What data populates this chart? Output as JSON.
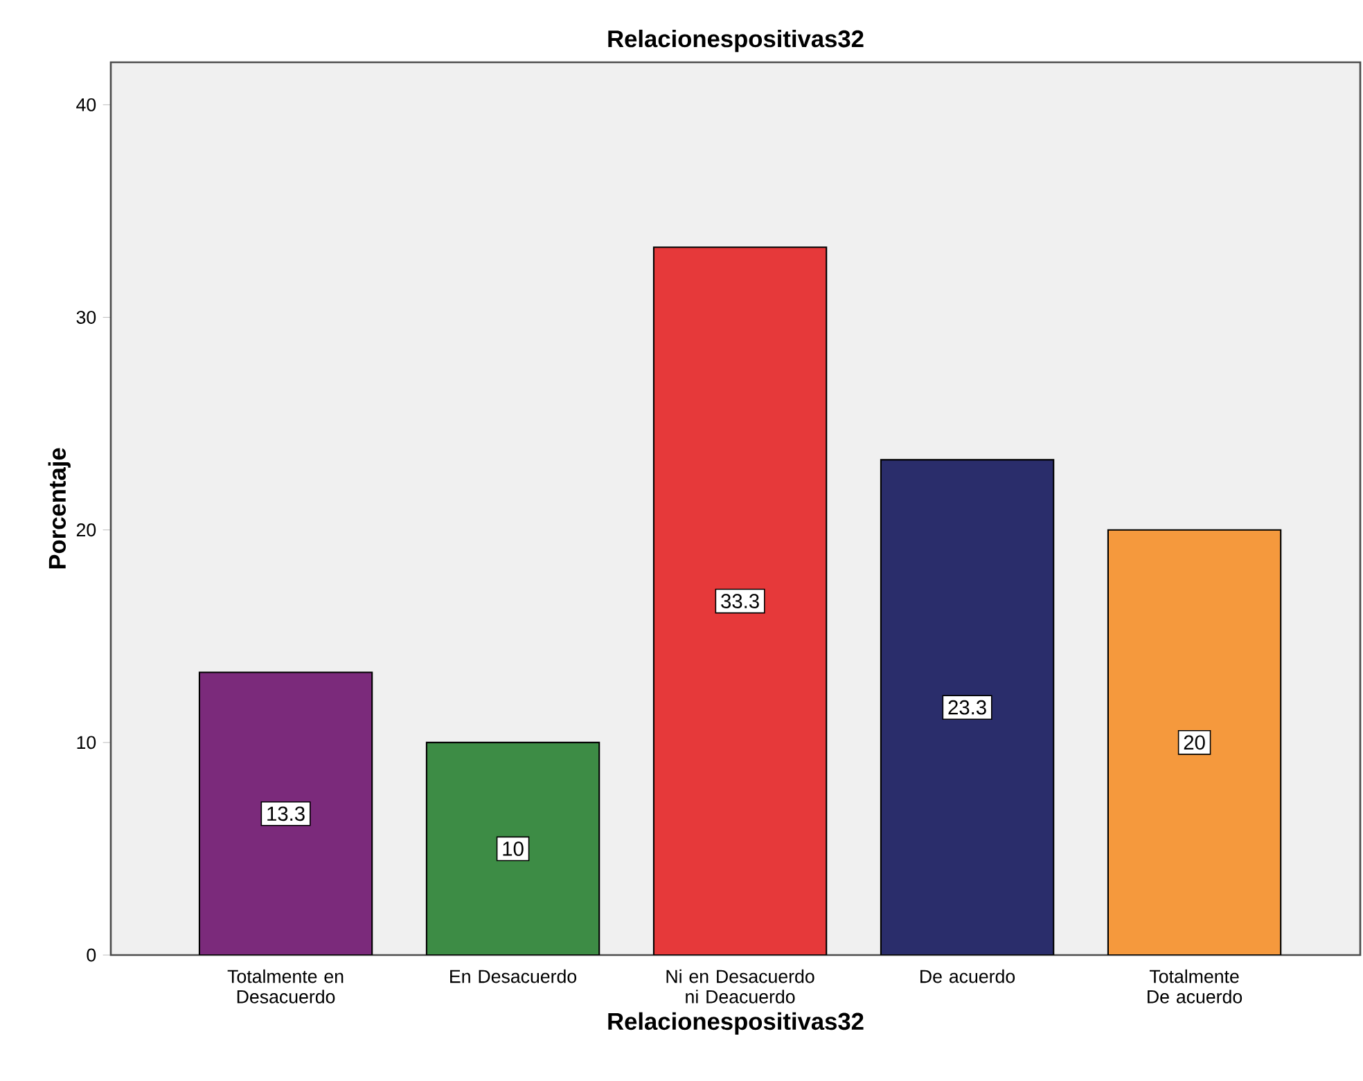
{
  "chart_data": {
    "type": "bar",
    "title": "Relacionespositivas32",
    "xlabel": "Relacionespositivas32",
    "ylabel": "Porcentaje",
    "categories": [
      "Totalmente en Desacuerdo",
      "En Desacuerdo",
      "Ni en Desacuerdo ni Deacuerdo",
      "De acuerdo",
      "Totalmente De acuerdo"
    ],
    "values": [
      13.3,
      10,
      33.3,
      23.3,
      20
    ],
    "colors": [
      "#7b2a7b",
      "#3d8c45",
      "#e6393a",
      "#2a2d6b",
      "#f5993d"
    ],
    "ylim": [
      0,
      42
    ],
    "yticks": [
      0,
      10,
      20,
      30,
      40
    ],
    "data_labels": true
  }
}
